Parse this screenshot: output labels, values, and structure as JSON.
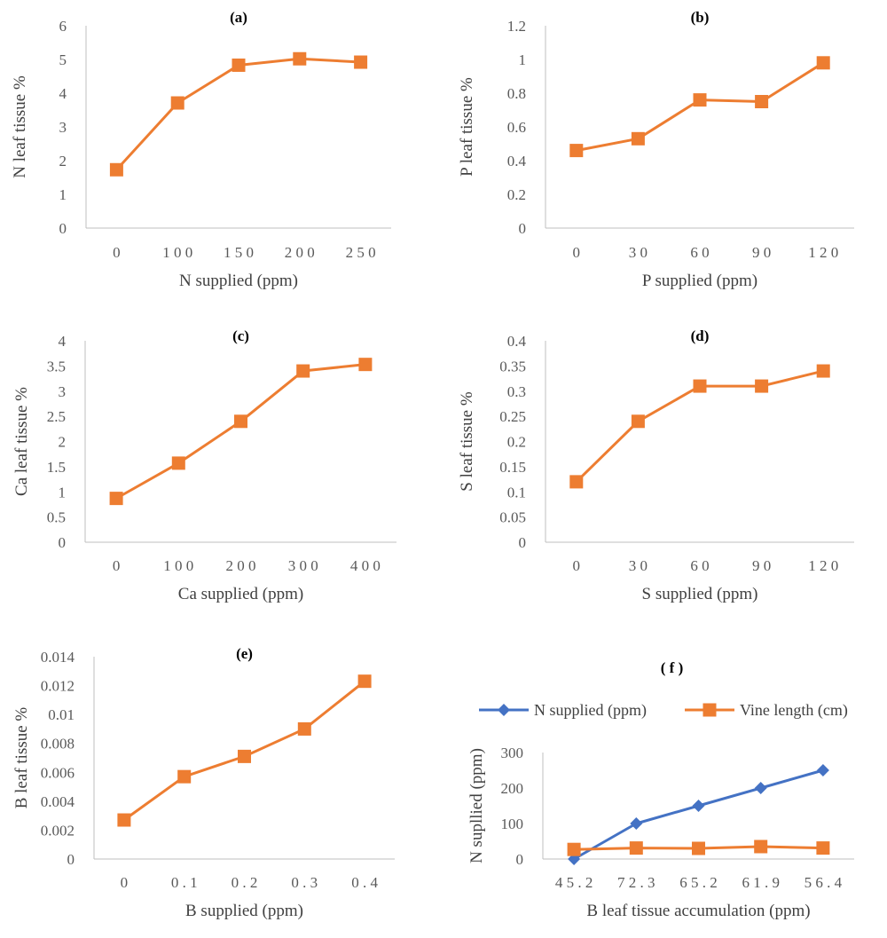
{
  "colors": {
    "orange": "#ED7D31",
    "blue": "#4472C4",
    "axis": "#BFBFBF"
  },
  "chart_data": [
    {
      "type": "line",
      "title": "(a)",
      "xlabel": "N supplied (ppm)",
      "ylabel": "N leaf tissue %",
      "categories": [
        "0",
        "100",
        "150",
        "200",
        "250"
      ],
      "series": [
        {
          "values": [
            1.73,
            3.71,
            4.83,
            5.02,
            4.92
          ],
          "color": "#ED7D31",
          "marker": "square"
        }
      ],
      "ylim": [
        0,
        6
      ],
      "yticks": [
        "0",
        "1",
        "2",
        "3",
        "4",
        "5",
        "6"
      ],
      "grid": false
    },
    {
      "type": "line",
      "title": "(b)",
      "xlabel": "P supplied (ppm)",
      "ylabel": "P leaf tissue %",
      "categories": [
        "0",
        "30",
        "60",
        "90",
        "120"
      ],
      "series": [
        {
          "values": [
            0.46,
            0.53,
            0.76,
            0.75,
            0.98
          ],
          "color": "#ED7D31",
          "marker": "square"
        }
      ],
      "ylim": [
        0,
        1.2
      ],
      "yticks": [
        "0",
        "0.2",
        "0.4",
        "0.6",
        "0.8",
        "1",
        "1.2"
      ],
      "grid": false
    },
    {
      "type": "line",
      "title": "(c)",
      "xlabel": "Ca supplied (ppm)",
      "ylabel": "Ca leaf tissue %",
      "categories": [
        "0",
        "100",
        "200",
        "300",
        "400"
      ],
      "series": [
        {
          "values": [
            0.87,
            1.57,
            2.4,
            3.4,
            3.53
          ],
          "color": "#ED7D31",
          "marker": "square"
        }
      ],
      "ylim": [
        0,
        4
      ],
      "yticks": [
        "0",
        "0.5",
        "1",
        "1.5",
        "2",
        "2.5",
        "3",
        "3.5",
        "4"
      ],
      "grid": false
    },
    {
      "type": "line",
      "title": "(d)",
      "xlabel": "S supplied (ppm)",
      "ylabel": "S leaf tissue %",
      "categories": [
        "0",
        "30",
        "60",
        "90",
        "120"
      ],
      "series": [
        {
          "values": [
            0.12,
            0.24,
            0.31,
            0.31,
            0.34
          ],
          "color": "#ED7D31",
          "marker": "square"
        }
      ],
      "ylim": [
        0,
        0.4
      ],
      "yticks": [
        "0",
        "0.05",
        "0.1",
        "0.15",
        "0.2",
        "0.25",
        "0.3",
        "0.35",
        "0.4"
      ],
      "grid": false
    },
    {
      "type": "line",
      "title": "(e)",
      "xlabel": "B supplied (ppm)",
      "ylabel": "B leaf tissue %",
      "categories": [
        "0",
        "0.1",
        "0.2",
        "0.3",
        "0.4"
      ],
      "series": [
        {
          "values": [
            0.0027,
            0.0057,
            0.0071,
            0.009,
            0.0123
          ],
          "color": "#ED7D31",
          "marker": "square"
        }
      ],
      "ylim": [
        0,
        0.014
      ],
      "yticks": [
        "0",
        "0.002",
        "0.004",
        "0.006",
        "0.008",
        "0.01",
        "0.012",
        "0.014"
      ],
      "grid": false
    },
    {
      "type": "line",
      "title": "(f)",
      "xlabel": "B leaf tissue accumulation (ppm)",
      "ylabel": "N supllied (ppm)",
      "categories": [
        "45.2",
        "72.3",
        "65.2",
        "61.9",
        "56.4"
      ],
      "series": [
        {
          "name": "N supplied (ppm)",
          "values": [
            0,
            100,
            150,
            200,
            250
          ],
          "color": "#4472C4",
          "marker": "diamond"
        },
        {
          "name": "Vine length (cm)",
          "values": [
            27,
            31,
            30,
            35,
            31
          ],
          "color": "#ED7D31",
          "marker": "square"
        }
      ],
      "ylim": [
        0,
        300
      ],
      "yticks": [
        "0",
        "100",
        "200",
        "300"
      ],
      "legend": "top",
      "grid": false
    }
  ]
}
